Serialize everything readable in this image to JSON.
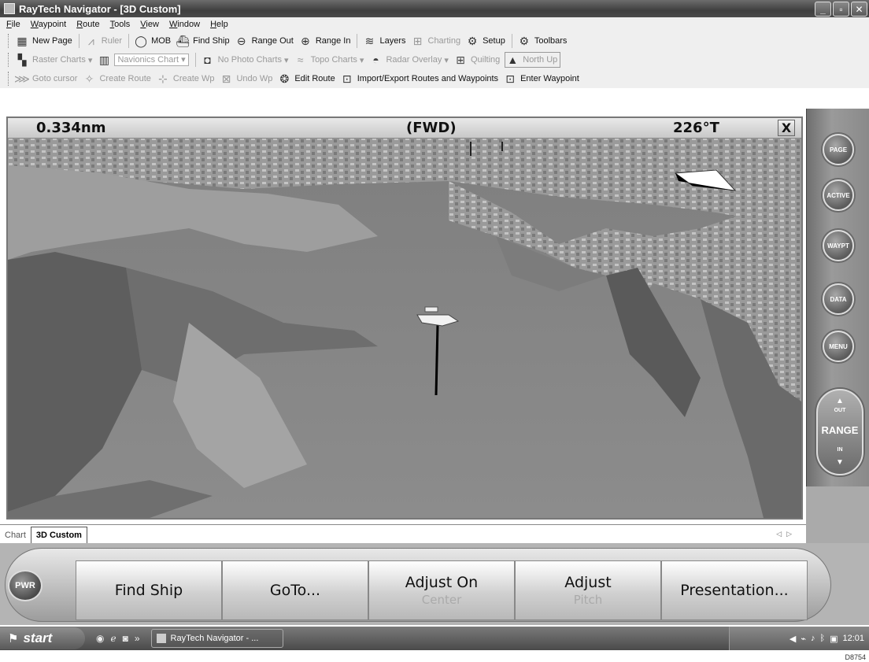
{
  "window": {
    "title": "RayTech Navigator - [3D  Custom]",
    "controls": [
      "_",
      "▫",
      "✕"
    ]
  },
  "menu": [
    "File",
    "Waypoint",
    "Route",
    "Tools",
    "View",
    "Window",
    "Help"
  ],
  "toolbar1": [
    {
      "label": "New Page",
      "icon": "new-page-icon",
      "enabled": true
    },
    {
      "label": "Ruler",
      "icon": "ruler-icon",
      "enabled": false
    },
    {
      "label": "MOB",
      "icon": "mob-icon",
      "enabled": true
    },
    {
      "label": "Find Ship",
      "icon": "find-ship-icon",
      "enabled": true
    },
    {
      "label": "Range Out",
      "icon": "range-out-icon",
      "enabled": true
    },
    {
      "label": "Range In",
      "icon": "range-in-icon",
      "enabled": true
    },
    {
      "label": "Layers",
      "icon": "layers-icon",
      "enabled": true
    },
    {
      "label": "Charting",
      "icon": "charting-icon",
      "enabled": false
    },
    {
      "label": "Setup",
      "icon": "setup-icon",
      "enabled": true
    },
    {
      "label": "Toolbars",
      "icon": "toolbars-icon",
      "enabled": true
    }
  ],
  "toolbar2": {
    "raster": "Raster Charts",
    "navionics": "Navionics Chart",
    "photo": "No Photo Charts",
    "topo": "Topo Charts",
    "radar": "Radar Overlay",
    "quilting": "Quilting",
    "northup": "North Up"
  },
  "toolbar3": [
    {
      "label": "Goto cursor",
      "icon": "goto-cursor-icon",
      "enabled": false
    },
    {
      "label": "Create Route",
      "icon": "create-route-icon",
      "enabled": false
    },
    {
      "label": "Create Wp",
      "icon": "create-wp-icon",
      "enabled": false
    },
    {
      "label": "Undo Wp",
      "icon": "undo-wp-icon",
      "enabled": false
    },
    {
      "label": "Edit Route",
      "icon": "edit-route-icon",
      "enabled": true
    },
    {
      "label": "Import/Export Routes and Waypoints",
      "icon": "import-export-icon",
      "enabled": true
    },
    {
      "label": "Enter Waypoint",
      "icon": "enter-waypoint-icon",
      "enabled": true
    }
  ],
  "hud": {
    "range": "0.334nm",
    "mode": "(FWD)",
    "bearing": "226°T",
    "close": "X"
  },
  "side_buttons": [
    "PAGE",
    "ACTIVE",
    "WAYPT",
    "DATA",
    "MENU"
  ],
  "range_control": {
    "out": "OUT",
    "label": "RANGE",
    "in": "IN"
  },
  "tabs": [
    {
      "label": "Chart",
      "active": false
    },
    {
      "label": "3D Custom",
      "active": true
    }
  ],
  "softkeys": [
    {
      "label": "Find Ship",
      "sub": ""
    },
    {
      "label": "GoTo...",
      "sub": ""
    },
    {
      "label": "Adjust On",
      "sub": "Center"
    },
    {
      "label": "Adjust",
      "sub": "Pitch"
    },
    {
      "label": "Presentation...",
      "sub": ""
    }
  ],
  "pwr": "PWR",
  "taskbar": {
    "start": "start",
    "task": "RayTech Navigator - ...",
    "clock": "12:01"
  },
  "figure_id": "D8754"
}
